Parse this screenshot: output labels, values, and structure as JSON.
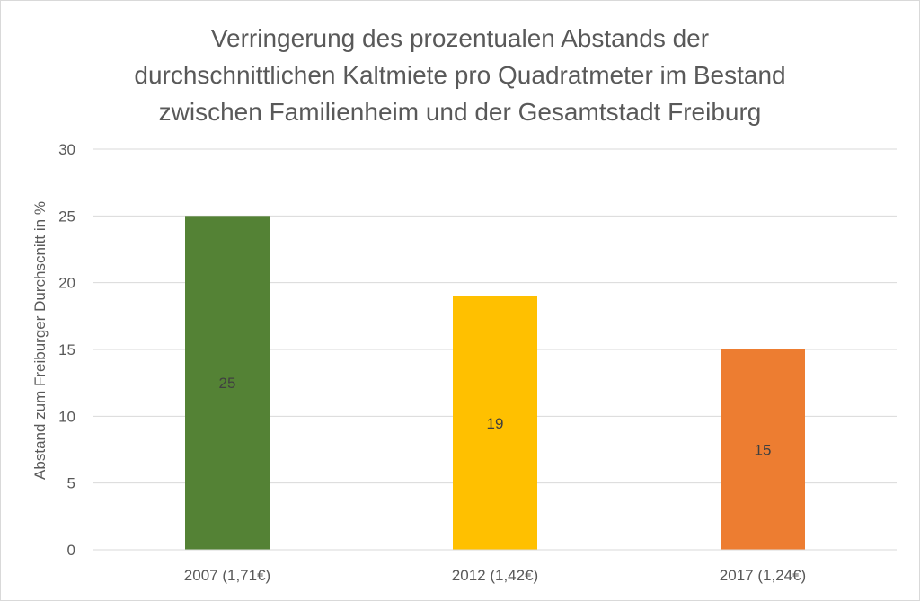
{
  "chart_data": {
    "type": "bar",
    "title": "Verringerung des prozentualen Abstands der\ndurchschnittlichen Kaltmiete pro Quadratmeter im Bestand\nzwischen Familienheim und der Gesamtstadt Freiburg",
    "ylabel": "Abstand zum Freiburger Durchscnitt in %",
    "xlabel": "",
    "categories": [
      "2007 (1,71€)",
      "2012 (1,42€)",
      "2017 (1,24€)"
    ],
    "values": [
      25,
      19,
      15
    ],
    "colors": [
      "#548235",
      "#ffc000",
      "#ed7d31"
    ],
    "ylim": [
      0,
      30
    ],
    "yticks": [
      0,
      5,
      10,
      15,
      20,
      25,
      30
    ],
    "grid": true,
    "data_labels": true
  }
}
